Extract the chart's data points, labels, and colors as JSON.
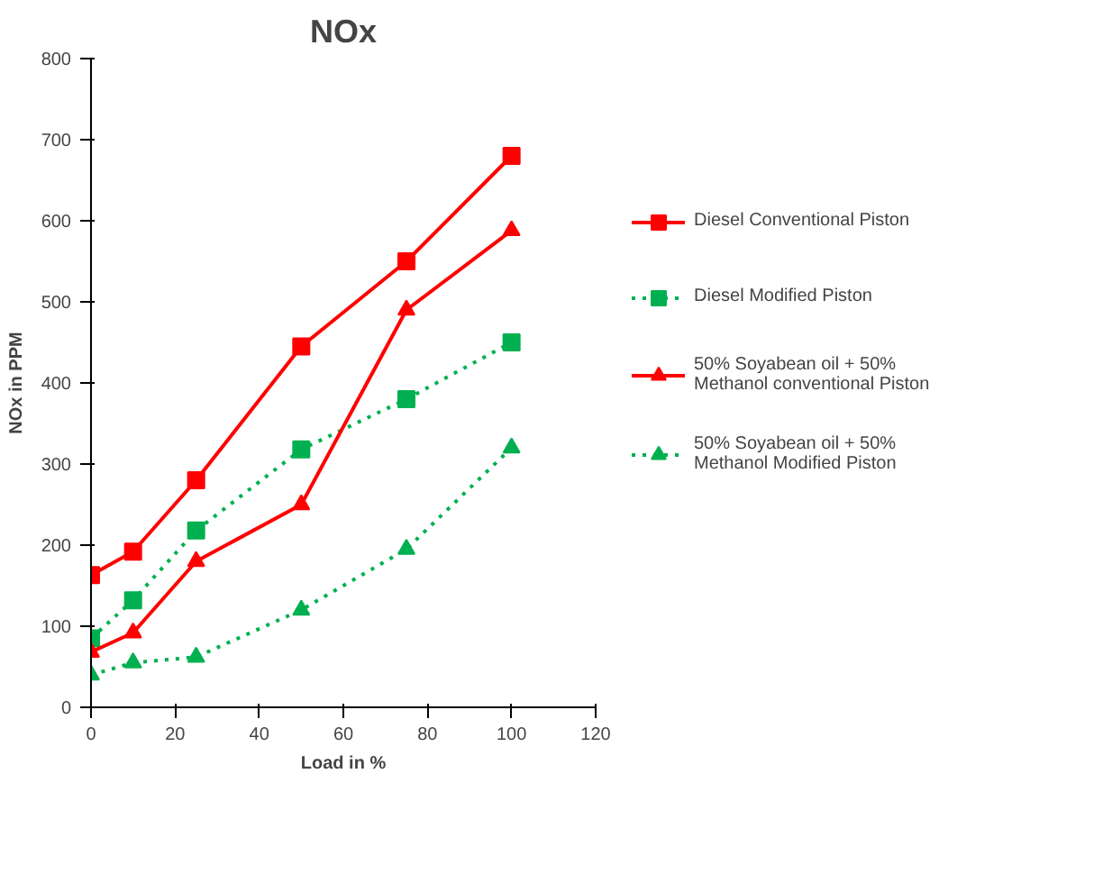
{
  "chart_data": {
    "type": "line",
    "title": "NOx",
    "xlabel": "Load in %",
    "ylabel": "NOx in PPM",
    "x": [
      0,
      10,
      25,
      50,
      75,
      100
    ],
    "series": [
      {
        "name": "Diesel Conventional Piston",
        "color": "#ff0000",
        "values": [
          163,
          192,
          280,
          445,
          550,
          680
        ],
        "marker": "square",
        "line_style": "solid"
      },
      {
        "name": "Diesel Modified Piston",
        "color": "#00b050",
        "values": [
          85,
          132,
          218,
          318,
          380,
          450
        ],
        "marker": "square",
        "line_style": "dotted"
      },
      {
        "name": "50% Soyabean oil + 50% Methanol conventional Piston",
        "color": "#ff0000",
        "values": [
          68,
          92,
          180,
          250,
          490,
          588
        ],
        "marker": "triangle",
        "line_style": "solid"
      },
      {
        "name": "50% Soyabean oil + 50% Methanol Modified Piston",
        "color": "#00b050",
        "values": [
          40,
          55,
          62,
          120,
          195,
          320
        ],
        "marker": "triangle",
        "line_style": "dotted"
      }
    ],
    "xlim": [
      0,
      120
    ],
    "xticks": [
      0,
      20,
      40,
      60,
      80,
      100,
      120
    ],
    "ylim": [
      0,
      800
    ],
    "yticks": [
      0,
      100,
      200,
      300,
      400,
      500,
      600,
      700,
      800
    ],
    "grid": false,
    "legend": "right"
  }
}
